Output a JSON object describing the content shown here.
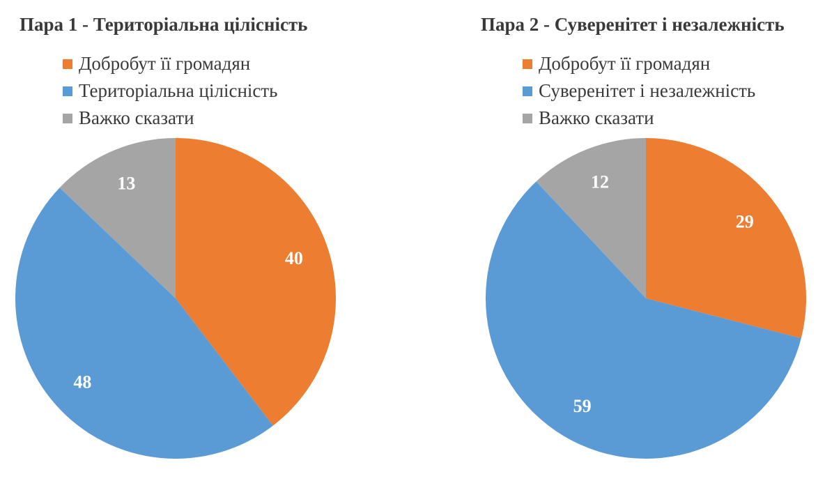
{
  "chart_data": [
    {
      "type": "pie",
      "title": "Пара 1 - Територіальна цілісність",
      "categories": [
        "Добробут її громадян",
        "Територіальна цілісність",
        "Важко сказати"
      ],
      "values": [
        40,
        48,
        13
      ],
      "colors": [
        "#ed7d31",
        "#5b9bd5",
        "#a5a5a5"
      ],
      "legend": "top"
    },
    {
      "type": "pie",
      "title": "Пара 2 - Суверенітет і незалежність",
      "categories": [
        "Добробут її громадян",
        "Суверенітет і незалежність",
        "Важко сказати"
      ],
      "values": [
        29,
        59,
        12
      ],
      "colors": [
        "#ed7d31",
        "#5b9bd5",
        "#a5a5a5"
      ],
      "legend": "top"
    }
  ]
}
